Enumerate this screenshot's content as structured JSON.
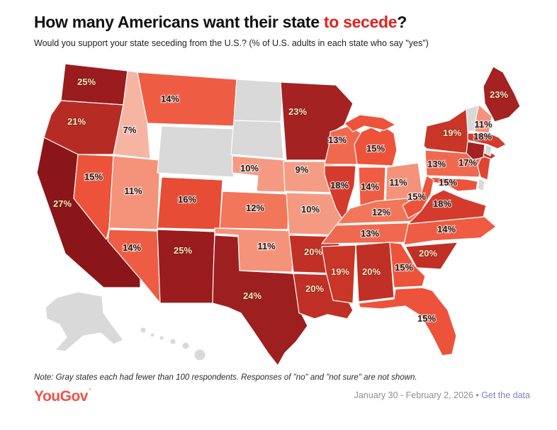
{
  "header": {
    "title_main": "How many Americans want their state ",
    "title_accent": "to secede",
    "title_end": "?",
    "subtitle": "Would you support your state seceding from the U.S.? (% of U.S. adults in each state who say \"yes\")"
  },
  "footer": {
    "note": "Note: Gray states each had fewer than 100 respondents. Responses of \"no\" and \"not sure\" are not shown.",
    "logo": "YouGov",
    "date_range": "January 30 - February 2, 2026",
    "separator": "•",
    "link": "Get the data"
  },
  "colors": {
    "title_accent": "#e0231e",
    "logo_red": "#f0524a",
    "link_purple": "#7c80cf",
    "no_data_gray": "#d9d9d9",
    "label_dark": "#1d1d1b",
    "label_light": "#f2e5bd",
    "light_label_min": 19,
    "scale": {
      "7": "#f6b5a3",
      "9": "#f59c85",
      "10": "#f59a82",
      "11": "#f5937a",
      "12": "#f1765a",
      "13": "#ef6950",
      "14": "#ee5d43",
      "15": "#ec533a",
      "16": "#e74c35",
      "17": "#e04531",
      "18": "#d43b2c",
      "19": "#c93527",
      "20": "#c13026",
      "21": "#b62c24",
      "23": "#a42222",
      "24": "#9e1f20",
      "25": "#9a1c1e",
      "27": "#8b1619"
    }
  },
  "chart_data": {
    "type": "choropleth",
    "unit": "%",
    "title": "How many Americans want their state to secede?",
    "question": "Would you support your state seceding from the U.S.?",
    "legend": "none (values labeled directly on states)",
    "gray_meaning": "fewer than 100 respondents",
    "states": [
      {
        "abbr": "AK",
        "name": "Alaska",
        "value": null,
        "gray": true
      },
      {
        "abbr": "HI",
        "name": "Hawaii",
        "value": null,
        "gray": true
      },
      {
        "abbr": "WA",
        "name": "Washington",
        "value": 25
      },
      {
        "abbr": "OR",
        "name": "Oregon",
        "value": 21
      },
      {
        "abbr": "CA",
        "name": "California",
        "value": 27
      },
      {
        "abbr": "ID",
        "name": "Idaho",
        "value": 7
      },
      {
        "abbr": "NV",
        "name": "Nevada",
        "value": 15
      },
      {
        "abbr": "UT",
        "name": "Utah",
        "value": 11
      },
      {
        "abbr": "AZ",
        "name": "Arizona",
        "value": 14
      },
      {
        "abbr": "MT",
        "name": "Montana",
        "value": 14
      },
      {
        "abbr": "WY",
        "name": "Wyoming",
        "value": null,
        "gray": true
      },
      {
        "abbr": "CO",
        "name": "Colorado",
        "value": 16
      },
      {
        "abbr": "NM",
        "name": "New Mexico",
        "value": 25
      },
      {
        "abbr": "ND",
        "name": "North Dakota",
        "value": null,
        "gray": true
      },
      {
        "abbr": "SD",
        "name": "South Dakota",
        "value": null,
        "gray": true
      },
      {
        "abbr": "NE",
        "name": "Nebraska",
        "value": 10
      },
      {
        "abbr": "KS",
        "name": "Kansas",
        "value": 12
      },
      {
        "abbr": "OK",
        "name": "Oklahoma",
        "value": 11
      },
      {
        "abbr": "TX",
        "name": "Texas",
        "value": 24
      },
      {
        "abbr": "MN",
        "name": "Minnesota",
        "value": 23
      },
      {
        "abbr": "IA",
        "name": "Iowa",
        "value": 9
      },
      {
        "abbr": "MO",
        "name": "Missouri",
        "value": 10
      },
      {
        "abbr": "AR",
        "name": "Arkansas",
        "value": 20
      },
      {
        "abbr": "LA",
        "name": "Louisiana",
        "value": 20
      },
      {
        "abbr": "WI",
        "name": "Wisconsin",
        "value": 13
      },
      {
        "abbr": "IL",
        "name": "Illinois",
        "value": 18
      },
      {
        "abbr": "MI",
        "name": "Michigan",
        "value": 15
      },
      {
        "abbr": "IN",
        "name": "Indiana",
        "value": 14
      },
      {
        "abbr": "OH",
        "name": "Ohio",
        "value": 11
      },
      {
        "abbr": "KY",
        "name": "Kentucky",
        "value": 12
      },
      {
        "abbr": "TN",
        "name": "Tennessee",
        "value": 13
      },
      {
        "abbr": "MS",
        "name": "Mississippi",
        "value": 19
      },
      {
        "abbr": "AL",
        "name": "Alabama",
        "value": 20
      },
      {
        "abbr": "GA",
        "name": "Georgia",
        "value": 15
      },
      {
        "abbr": "SC",
        "name": "South Carolina",
        "value": 20
      },
      {
        "abbr": "NC",
        "name": "North Carolina",
        "value": 14
      },
      {
        "abbr": "FL",
        "name": "Florida",
        "value": 15
      },
      {
        "abbr": "NY",
        "name": "New York",
        "value": 19
      },
      {
        "abbr": "PA",
        "name": "Pennsylvania",
        "value": 13
      },
      {
        "abbr": "NJ",
        "name": "New Jersey",
        "value": 17
      },
      {
        "abbr": "MD",
        "name": "Maryland",
        "value": 15
      },
      {
        "abbr": "DE",
        "name": "Delaware",
        "value": null,
        "gray": true
      },
      {
        "abbr": "WV",
        "name": "West Virginia",
        "value": 15
      },
      {
        "abbr": "VA",
        "name": "Virginia",
        "value": 18
      },
      {
        "abbr": "VT",
        "name": "Vermont",
        "value": null,
        "gray": true
      },
      {
        "abbr": "NH",
        "name": "New Hampshire",
        "value": 11
      },
      {
        "abbr": "ME",
        "name": "Maine",
        "value": 23
      },
      {
        "abbr": "MA",
        "name": "Massachusetts",
        "value": 18
      },
      {
        "abbr": "CT",
        "name": "Connecticut",
        "value": null,
        "fill": "#a32123",
        "label_shown": false
      },
      {
        "abbr": "RI",
        "name": "Rhode Island",
        "value": null,
        "gray": true
      }
    ]
  }
}
